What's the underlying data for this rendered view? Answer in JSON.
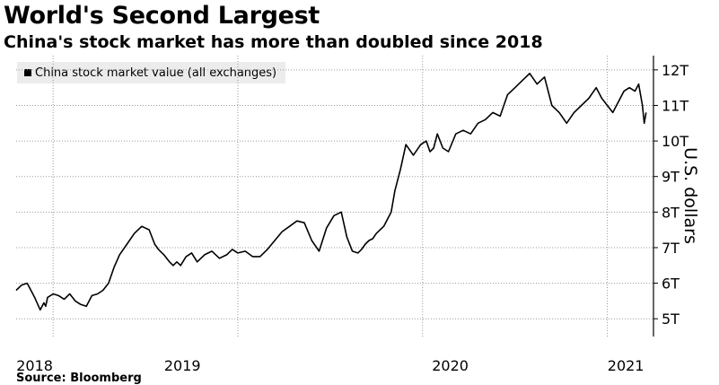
{
  "header": {
    "title": "World's Second Largest",
    "subtitle": "China's stock market has more than doubled since 2018"
  },
  "source_text": "Source: Bloomberg",
  "chart_data": {
    "type": "line",
    "title": "World's Second Largest",
    "subtitle": "China's stock market has more than doubled since 2018",
    "ylabel": "U.S. dollars",
    "xlabel": "",
    "legend": [
      "China stock market value (all exchanges)"
    ],
    "legend_position": "top-left",
    "ylim": [
      4.5,
      12.4
    ],
    "xlim": [
      2017.8,
      2021.25
    ],
    "y_ticks": [
      5,
      6,
      7,
      8,
      9,
      10,
      11,
      12
    ],
    "y_tick_labels": [
      "5T",
      "6T",
      "7T",
      "8T",
      "9T",
      "10T",
      "11T",
      "12T"
    ],
    "x_gridlines": [
      2018.0,
      2019.0,
      2020.0,
      2021.0
    ],
    "x_labels": [
      {
        "label": "2018",
        "x": 2017.9
      },
      {
        "label": "2019",
        "x": 2018.7
      },
      {
        "label": "2020",
        "x": 2020.15
      },
      {
        "label": "2021",
        "x": 2021.1
      }
    ],
    "grid": true,
    "series": [
      {
        "name": "China stock market value (all exchanges)",
        "color": "#000000",
        "x": [
          2017.8,
          2017.83,
          2017.86,
          2017.9,
          2017.93,
          2017.95,
          2017.96,
          2017.97,
          2018.0,
          2018.03,
          2018.06,
          2018.09,
          2018.12,
          2018.15,
          2018.18,
          2018.21,
          2018.24,
          2018.27,
          2018.3,
          2018.33,
          2018.36,
          2018.4,
          2018.44,
          2018.48,
          2018.52,
          2018.55,
          2018.57,
          2018.6,
          2018.63,
          2018.65,
          2018.67,
          2018.69,
          2018.72,
          2018.75,
          2018.78,
          2018.82,
          2018.86,
          2018.9,
          2018.94,
          2018.97,
          2019.0,
          2019.04,
          2019.08,
          2019.12,
          2019.16,
          2019.2,
          2019.24,
          2019.28,
          2019.32,
          2019.36,
          2019.4,
          2019.44,
          2019.48,
          2019.52,
          2019.56,
          2019.59,
          2019.62,
          2019.65,
          2019.67,
          2019.69,
          2019.71,
          2019.73,
          2019.75,
          2019.77,
          2019.79,
          2019.81,
          2019.83,
          2019.85,
          2019.88,
          2019.91,
          2019.95,
          2019.99,
          2020.02,
          2020.04,
          2020.06,
          2020.08,
          2020.11,
          2020.14,
          2020.18,
          2020.22,
          2020.26,
          2020.3,
          2020.34,
          2020.38,
          2020.42,
          2020.46,
          2020.5,
          2020.54,
          2020.58,
          2020.62,
          2020.66,
          2020.7,
          2020.74,
          2020.78,
          2020.82,
          2020.86,
          2020.9,
          2020.94,
          2020.97,
          2021.0,
          2021.03,
          2021.06,
          2021.09,
          2021.12,
          2021.15,
          2021.17,
          2021.18,
          2021.19,
          2021.2,
          2021.21
        ],
        "y": [
          5.8,
          5.95,
          6.0,
          5.6,
          5.25,
          5.45,
          5.35,
          5.6,
          5.7,
          5.65,
          5.55,
          5.7,
          5.5,
          5.4,
          5.35,
          5.65,
          5.7,
          5.8,
          6.0,
          6.45,
          6.8,
          7.1,
          7.4,
          7.6,
          7.5,
          7.1,
          6.95,
          6.8,
          6.6,
          6.5,
          6.6,
          6.5,
          6.75,
          6.85,
          6.6,
          6.8,
          6.9,
          6.7,
          6.8,
          6.95,
          6.85,
          6.9,
          6.75,
          6.75,
          6.95,
          7.2,
          7.45,
          7.6,
          7.75,
          7.7,
          7.2,
          6.9,
          7.55,
          7.9,
          8.0,
          7.3,
          6.9,
          6.85,
          6.95,
          7.1,
          7.2,
          7.25,
          7.4,
          7.5,
          7.6,
          7.8,
          8.0,
          8.6,
          9.2,
          9.9,
          9.6,
          9.9,
          10.0,
          9.7,
          9.8,
          10.2,
          9.8,
          9.7,
          10.2,
          10.3,
          10.2,
          10.5,
          10.6,
          10.8,
          10.7,
          11.3,
          11.5,
          11.7,
          11.9,
          11.6,
          11.8,
          11.0,
          10.8,
          10.5,
          10.8,
          11.0,
          11.2,
          11.5,
          11.2,
          11.0,
          10.8,
          11.1,
          11.4,
          11.5,
          11.4,
          11.6,
          11.3,
          11.0,
          10.5,
          10.8
        ]
      }
    ]
  }
}
